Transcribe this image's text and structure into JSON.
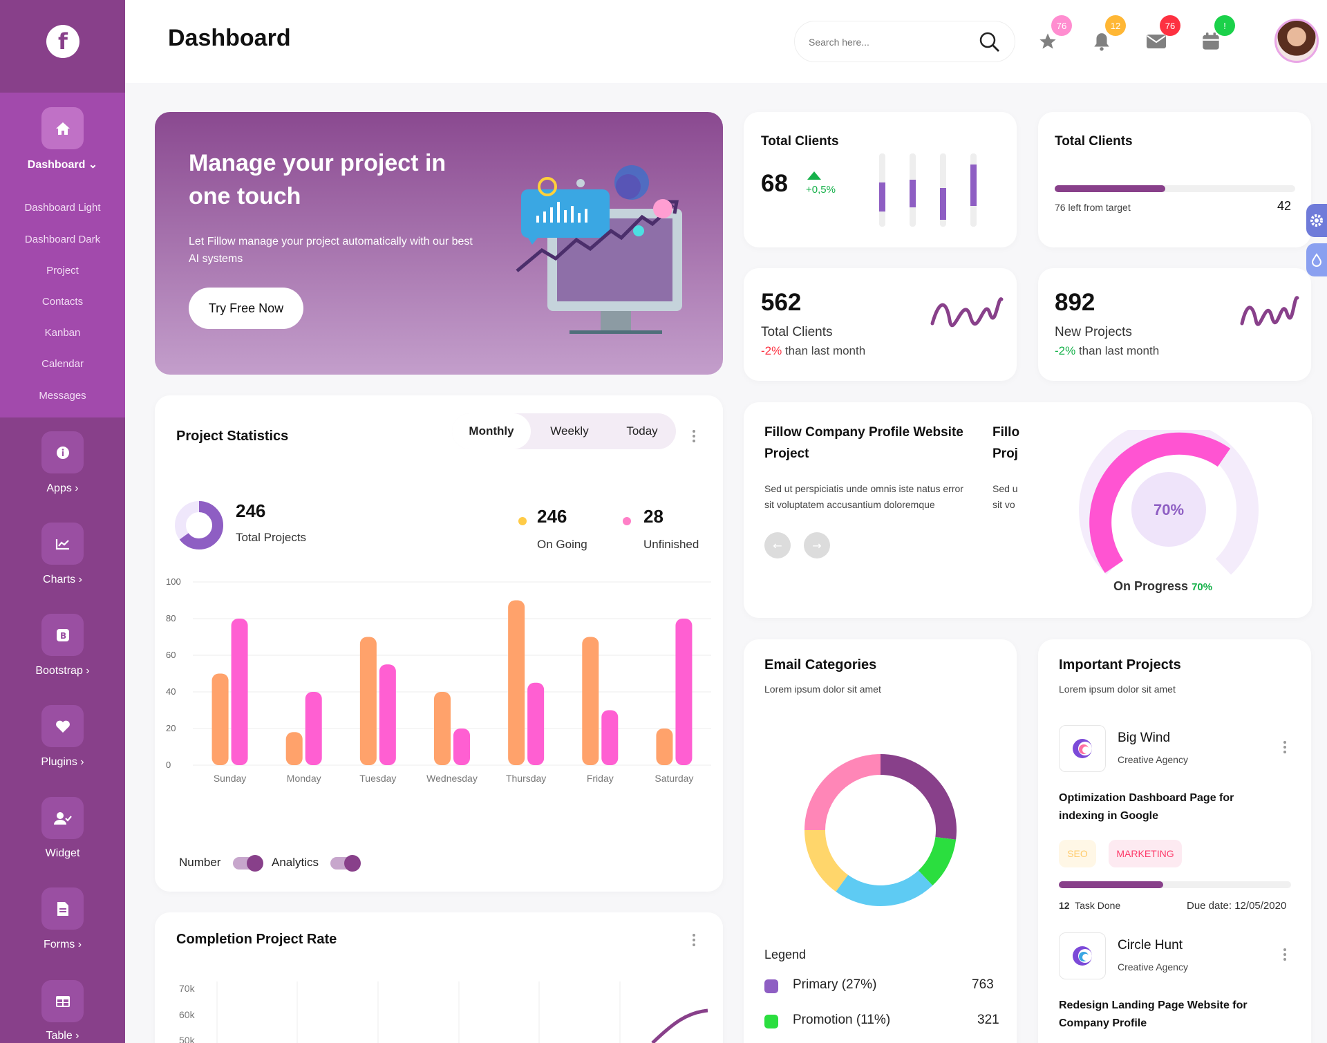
{
  "header": {
    "title": "Dashboard",
    "search_placeholder": "Search here...",
    "badges": {
      "star": "76",
      "bell": "12",
      "mail": "76",
      "calendar": "!"
    }
  },
  "sidebar": {
    "main": {
      "label": "Dashboard",
      "items": [
        "Dashboard Light",
        "Dashboard Dark",
        "Project",
        "Contacts",
        "Kanban",
        "Calendar",
        "Messages"
      ]
    },
    "sections": [
      {
        "label": "Apps"
      },
      {
        "label": "Charts"
      },
      {
        "label": "Bootstrap"
      },
      {
        "label": "Plugins"
      },
      {
        "label": "Widget"
      },
      {
        "label": "Forms"
      },
      {
        "label": "Table"
      }
    ]
  },
  "hero": {
    "title": "Manage your project in one touch",
    "text": "Let Fillow manage your project automatically with our best AI systems",
    "button": "Try Free Now"
  },
  "stats": {
    "clients1": {
      "label": "Total Clients",
      "value": "68",
      "change": "+0,5%"
    },
    "clients2": {
      "label": "Total Clients",
      "left": "76 left from target",
      "value": "42",
      "progress": 0.46
    },
    "clients3": {
      "value": "562",
      "label": "Total Clients",
      "change": "-2%",
      "suffix": " than last month"
    },
    "projects": {
      "value": "892",
      "label": "New Projects",
      "change": "-2%",
      "suffix": " than last month"
    }
  },
  "project_stats": {
    "title": "Project Statistics",
    "tabs": [
      "Monthly",
      "Weekly",
      "Today"
    ],
    "total": {
      "value": "246",
      "label": "Total Projects"
    },
    "ongoing": {
      "value": "246",
      "label": "On Going"
    },
    "unfinished": {
      "value": "28",
      "label": "Unfinished"
    },
    "toggles": [
      "Number",
      "Analytics"
    ]
  },
  "chart_data": {
    "type": "bar",
    "categories": [
      "Sunday",
      "Monday",
      "Tuesday",
      "Wednesday",
      "Thursday",
      "Friday",
      "Saturday"
    ],
    "series": [
      {
        "values": [
          50,
          18,
          70,
          40,
          90,
          70,
          20
        ]
      },
      {
        "values": [
          80,
          40,
          55,
          20,
          45,
          30,
          80
        ]
      }
    ],
    "ylim": [
      0,
      100
    ],
    "yticks": [
      0,
      20,
      40,
      60,
      80,
      100
    ],
    "colors": [
      "#ffa26b",
      "#ff5fd2"
    ]
  },
  "company": {
    "title1": "Fillow Company Profile Website",
    "title2": "Project",
    "title_clip1": "Fillo",
    "title_clip2": "Proj",
    "text1": "Sed ut perspiciatis unde omnis iste natus error",
    "text2": "sit voluptatem accusantium doloremque",
    "clip1": "Sed u",
    "clip2": "sit vo",
    "gauge": "70%",
    "progress_label": "On Progress",
    "progress_value": "70%"
  },
  "completion": {
    "title": "Completion Project Rate",
    "yticks": [
      "70k",
      "60k",
      "50k"
    ]
  },
  "email": {
    "title": "Email Categories",
    "subtitle": "Lorem ipsum dolor sit amet",
    "legend_title": "Legend",
    "donut": [
      {
        "color": "#88408a",
        "value": 27
      },
      {
        "color": "#2bde3f",
        "value": 11
      },
      {
        "color": "#5ecbf3",
        "value": 22
      },
      {
        "color": "#ffd66b",
        "value": 15
      },
      {
        "color": "#ff86b7",
        "value": 25
      }
    ],
    "legend": [
      {
        "label": "Primary (27%)",
        "value": "763",
        "color": "#8e5ec3"
      },
      {
        "label": "Promotion (11%)",
        "value": "321",
        "color": "#2bde3f"
      }
    ]
  },
  "important": {
    "title": "Important Projects",
    "subtitle": "Lorem ipsum dolor sit amet",
    "p1": {
      "name": "Big Wind",
      "type": "Creative Agency",
      "task": "Optimization Dashboard Page for indexing in Google",
      "tags": [
        "SEO",
        "MARKETING"
      ],
      "done_count": "12",
      "done_label": "Task Done",
      "due": "Due date: 12/05/2020",
      "progress": 0.45
    },
    "p2": {
      "name": "Circle Hunt",
      "type": "Creative Agency",
      "task": "Redesign Landing Page Website for Company Profile"
    }
  }
}
